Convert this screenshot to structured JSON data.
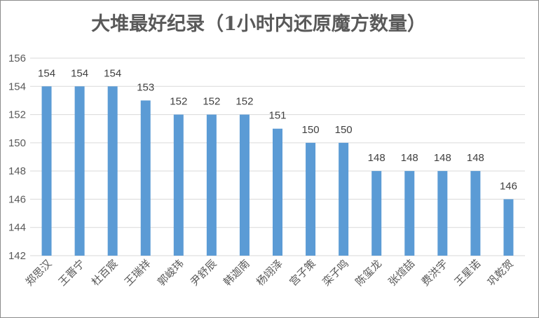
{
  "chart_data": {
    "type": "bar",
    "title": "大堆最好纪录（1小时内还原魔方数量）",
    "categories": [
      "郑思汉",
      "王晋宁",
      "杜百宸",
      "王瑞祥",
      "郭峻玮",
      "尹舒辰",
      "韩迦南",
      "杨翊泽",
      "宫子策",
      "栾子鸣",
      "陈玺龙",
      "张煊喆",
      "费洪宇",
      "王星诺",
      "巩乾贺"
    ],
    "values": [
      154,
      154,
      154,
      153,
      152,
      152,
      152,
      151,
      150,
      150,
      148,
      148,
      148,
      148,
      146
    ],
    "y_ticks": [
      "142",
      "144",
      "146",
      "148",
      "150",
      "152",
      "154",
      "156"
    ],
    "ylim": [
      142,
      156
    ],
    "grid": true,
    "data_labels": true,
    "bar_color": "#5b9bd5",
    "grid_color": "#d9d9d9"
  }
}
